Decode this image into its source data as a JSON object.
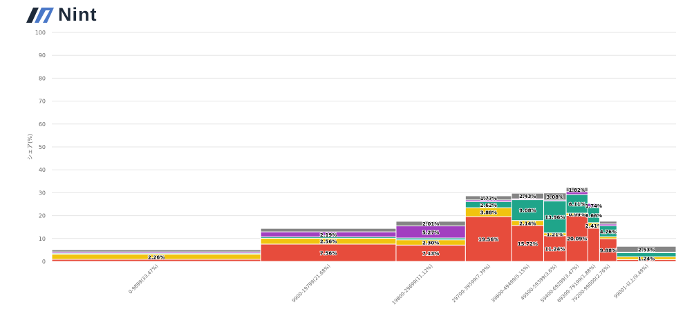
{
  "logo": {
    "text": "Nint"
  },
  "chart_data": {
    "type": "marimekko",
    "ylabel": "シェア(%)",
    "ylim": [
      0,
      100
    ],
    "yticks": [
      0,
      10,
      20,
      30,
      40,
      50,
      60,
      70,
      80,
      90,
      100
    ],
    "grid": true,
    "categories": [
      "0-9899(33.47%)",
      "9900-19799(21.68%)",
      "19800-29699(11.12%)",
      "29700-39599(7.39%)",
      "39600-49499(5.15%)",
      "49500-59399(3.6%)",
      "59400-69299(3.47%)",
      "69300-79199(1.88%)",
      "79200-99000(2.76%)",
      "99001-以上(9.49%)"
    ],
    "widths": [
      33.47,
      21.68,
      11.12,
      7.39,
      5.15,
      3.6,
      3.47,
      1.88,
      2.76,
      9.49
    ],
    "series": [
      {
        "name": "red",
        "color": "#e74c3c",
        "values": [
          0.9,
          7.56,
          7.13,
          19.56,
          15.72,
          11.24,
          20.09,
          14.5,
          9.88,
          0.8
        ],
        "labeled": [
          false,
          true,
          true,
          true,
          true,
          true,
          true,
          false,
          true,
          false
        ]
      },
      {
        "name": "yellow",
        "color": "#f1c40f",
        "values": [
          2.26,
          2.56,
          2.3,
          3.88,
          2.14,
          1.21,
          0.99,
          2.41,
          0.9,
          1.24
        ],
        "labeled": [
          true,
          true,
          true,
          true,
          true,
          true,
          true,
          true,
          false,
          true
        ]
      },
      {
        "name": "teal",
        "color": "#1fa58a",
        "values": [
          0.4,
          0.6,
          0.8,
          2.62,
          9.08,
          13.96,
          8.11,
          6.66,
          4.76,
          1.8
        ],
        "labeled": [
          false,
          false,
          false,
          true,
          true,
          true,
          true,
          true,
          true,
          false
        ]
      },
      {
        "name": "purple",
        "color": "#a23fc0",
        "values": [
          0.6,
          2.19,
          5.27,
          0.8,
          0.4,
          0.4,
          1.3,
          1.74,
          0.8,
          0.2
        ],
        "labeled": [
          false,
          true,
          true,
          false,
          false,
          false,
          false,
          true,
          false,
          false
        ]
      },
      {
        "name": "gray",
        "color": "#858585",
        "values": [
          0.9,
          1.5,
          2.01,
          1.77,
          2.43,
          3.08,
          1.82,
          0.3,
          1.2,
          2.53
        ],
        "labeled": [
          false,
          false,
          true,
          true,
          true,
          true,
          true,
          false,
          false,
          true
        ]
      }
    ]
  }
}
